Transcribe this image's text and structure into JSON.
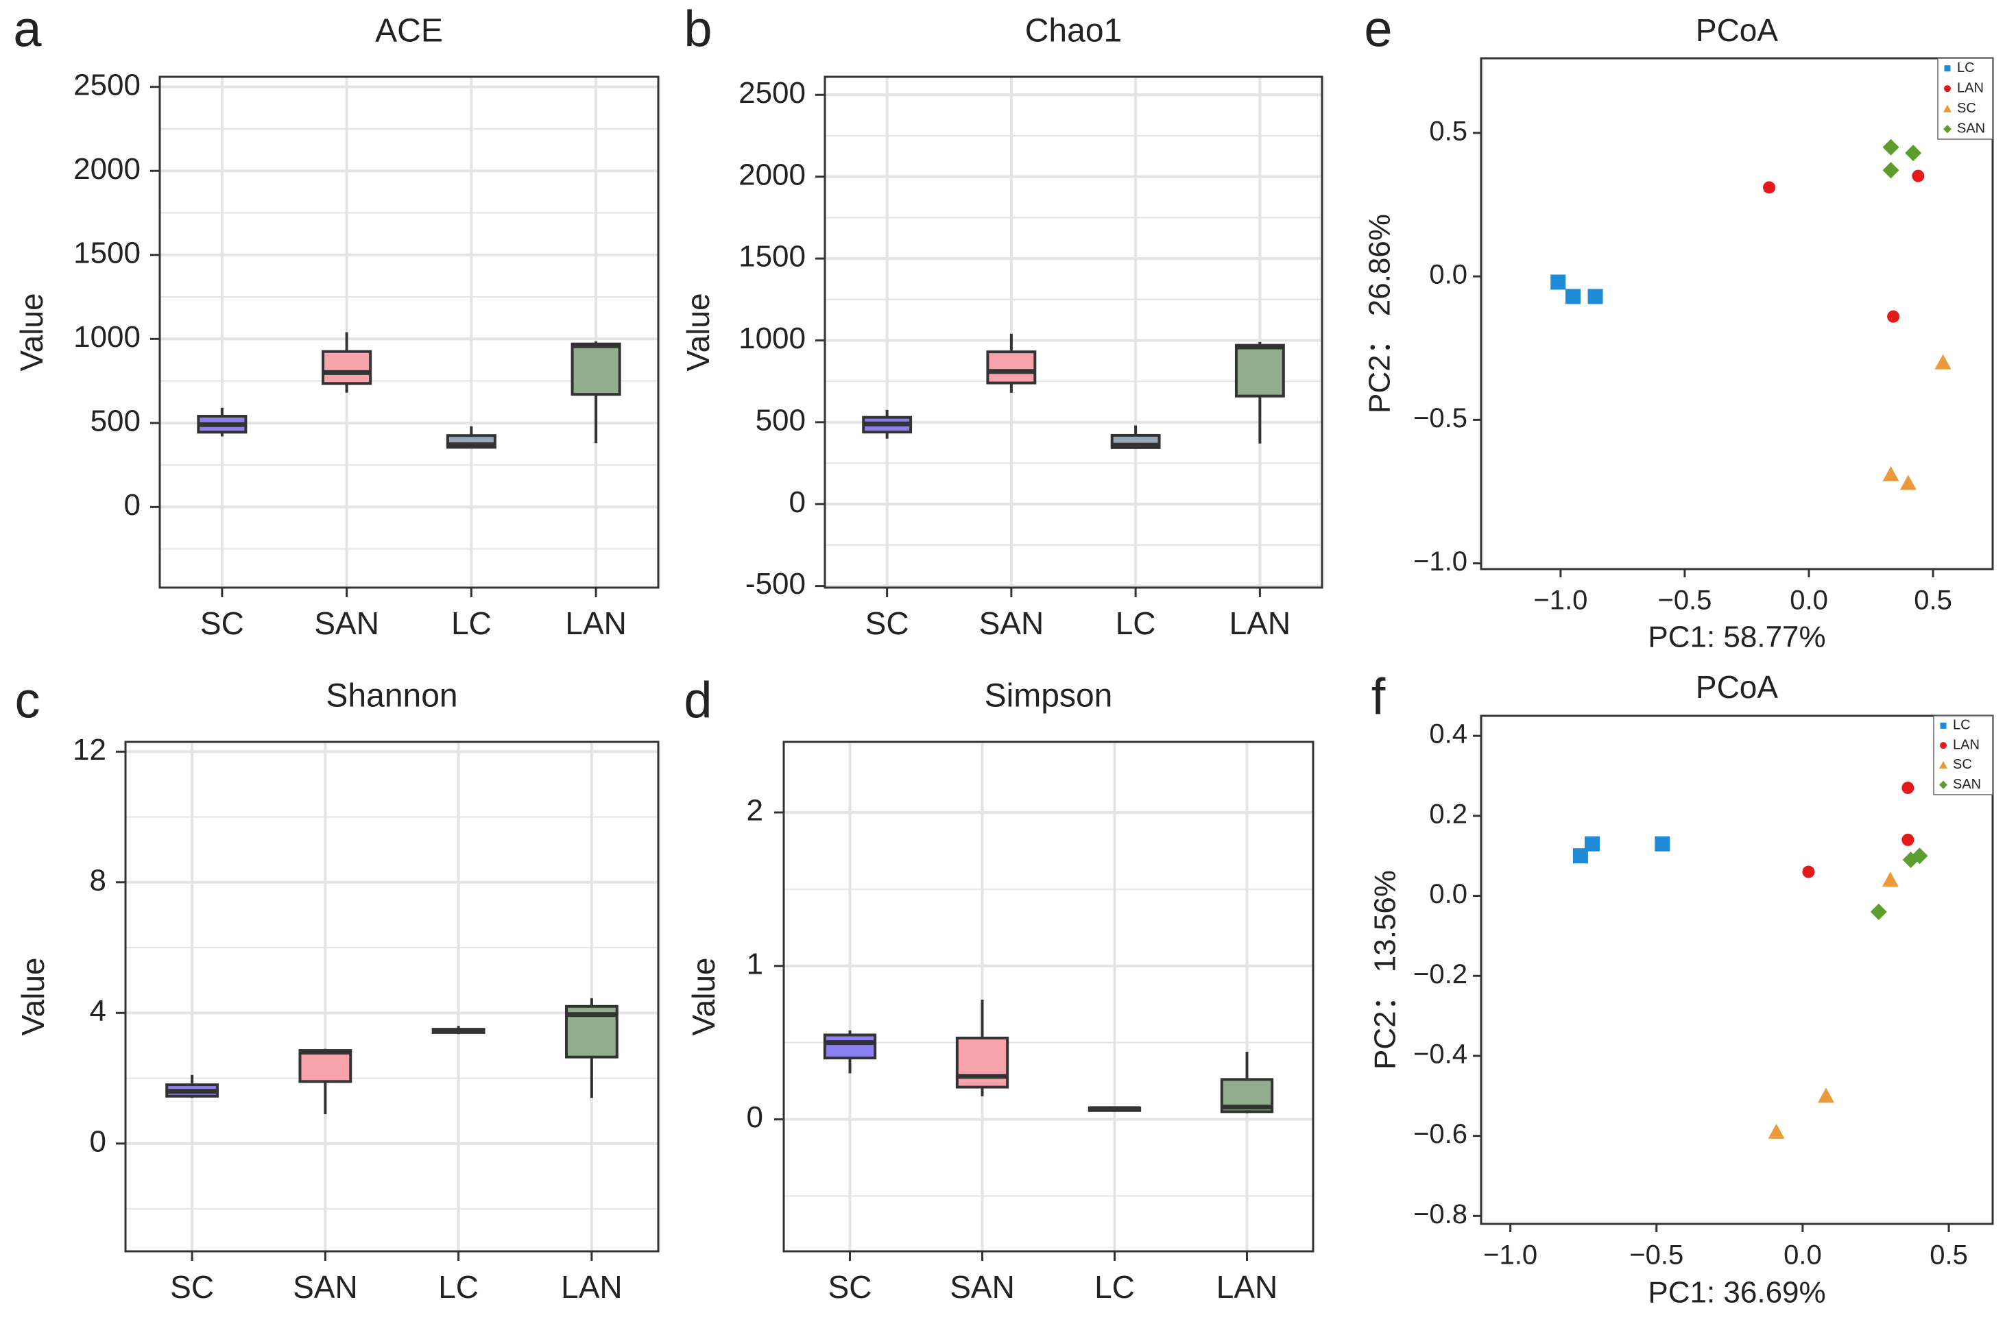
{
  "colors": {
    "SC": "#8c7ff0",
    "SAN": "#f6a3ab",
    "LC": "#97a8b2",
    "LAN": "#93ad8f",
    "pcoa_LC": "#1f8bd6",
    "pcoa_LAN": "#e5191a",
    "pcoa_SC": "#eb9a3a",
    "pcoa_SAN": "#5b9e2b"
  },
  "chart_data": [
    {
      "panel": "a",
      "type": "box",
      "title": "ACE",
      "xlabel": "",
      "ylabel": "Value",
      "ylim": [
        -480,
        2560
      ],
      "yticks": [
        0,
        500,
        1000,
        1500,
        2000,
        2500
      ],
      "grid": true,
      "categories": [
        "SC",
        "SAN",
        "LC",
        "LAN"
      ],
      "boxes": [
        {
          "group": "SC",
          "min": 420,
          "q1": 445,
          "median": 490,
          "q3": 540,
          "max": 590
        },
        {
          "group": "SAN",
          "min": 680,
          "q1": 735,
          "median": 800,
          "q3": 925,
          "max": 1040
        },
        {
          "group": "LC",
          "min": 350,
          "q1": 355,
          "median": 370,
          "q3": 425,
          "max": 480
        },
        {
          "group": "LAN",
          "min": 380,
          "q1": 670,
          "median": 960,
          "q3": 970,
          "max": 985
        }
      ]
    },
    {
      "panel": "b",
      "type": "box",
      "title": "Chao1",
      "xlabel": "",
      "ylabel": "Value",
      "ylim": [
        -510,
        2610
      ],
      "yticks": [
        -500,
        0,
        500,
        1000,
        1500,
        2000,
        2500
      ],
      "grid": true,
      "categories": [
        "SC",
        "SAN",
        "LC",
        "LAN"
      ],
      "boxes": [
        {
          "group": "SC",
          "min": 400,
          "q1": 440,
          "median": 490,
          "q3": 530,
          "max": 575
        },
        {
          "group": "SAN",
          "min": 680,
          "q1": 740,
          "median": 810,
          "q3": 930,
          "max": 1040
        },
        {
          "group": "LC",
          "min": 340,
          "q1": 345,
          "median": 360,
          "q3": 420,
          "max": 480
        },
        {
          "group": "LAN",
          "min": 370,
          "q1": 660,
          "median": 960,
          "q3": 970,
          "max": 990
        }
      ]
    },
    {
      "panel": "c",
      "type": "box",
      "title": "Shannon",
      "xlabel": "",
      "ylabel": "Value",
      "ylim": [
        -3.3,
        12.3
      ],
      "yticks": [
        0,
        4,
        8,
        12
      ],
      "grid": true,
      "categories": [
        "SC",
        "SAN",
        "LC",
        "LAN"
      ],
      "boxes": [
        {
          "group": "SC",
          "min": 1.4,
          "q1": 1.45,
          "median": 1.6,
          "q3": 1.8,
          "max": 2.1
        },
        {
          "group": "SAN",
          "min": 0.9,
          "q1": 1.9,
          "median": 2.8,
          "q3": 2.85,
          "max": 2.9
        },
        {
          "group": "LC",
          "min": 3.35,
          "q1": 3.4,
          "median": 3.45,
          "q3": 3.5,
          "max": 3.6
        },
        {
          "group": "LAN",
          "min": 1.4,
          "q1": 2.65,
          "median": 3.95,
          "q3": 4.2,
          "max": 4.45
        }
      ]
    },
    {
      "panel": "d",
      "type": "box",
      "title": "Simpson",
      "xlabel": "",
      "ylabel": "Value",
      "ylim": [
        -0.86,
        2.46
      ],
      "yticks": [
        0,
        1,
        2
      ],
      "grid": true,
      "categories": [
        "SC",
        "SAN",
        "LC",
        "LAN"
      ],
      "boxes": [
        {
          "group": "SC",
          "min": 0.3,
          "q1": 0.4,
          "median": 0.5,
          "q3": 0.55,
          "max": 0.58
        },
        {
          "group": "SAN",
          "min": 0.15,
          "q1": 0.21,
          "median": 0.28,
          "q3": 0.53,
          "max": 0.78
        },
        {
          "group": "LC",
          "min": 0.06,
          "q1": 0.065,
          "median": 0.07,
          "q3": 0.075,
          "max": 0.08
        },
        {
          "group": "LAN",
          "min": 0.04,
          "q1": 0.05,
          "median": 0.08,
          "q3": 0.26,
          "max": 0.44
        }
      ]
    },
    {
      "panel": "e",
      "type": "scatter",
      "title": "PCoA",
      "xlabel": "PC1: 58.77%",
      "ylabel": "PC2： 26.86%",
      "xlim": [
        -1.32,
        0.74
      ],
      "ylim": [
        -1.02,
        0.76
      ],
      "xticks": [
        -1.0,
        -0.5,
        0.0,
        0.5
      ],
      "yticks": [
        0.5,
        0.0,
        -0.5,
        -1.0
      ],
      "grid": false,
      "legend": "top-right",
      "series": [
        {
          "name": "LC",
          "marker": "square",
          "points": [
            [
              -1.01,
              -0.02
            ],
            [
              -0.95,
              -0.07
            ],
            [
              -0.86,
              -0.07
            ]
          ]
        },
        {
          "name": "LAN",
          "marker": "circle",
          "points": [
            [
              -0.16,
              0.31
            ],
            [
              0.44,
              0.35
            ],
            [
              0.34,
              -0.14
            ]
          ]
        },
        {
          "name": "SC",
          "marker": "triangle",
          "points": [
            [
              0.54,
              -0.3
            ],
            [
              0.33,
              -0.69
            ],
            [
              0.4,
              -0.72
            ]
          ]
        },
        {
          "name": "SAN",
          "marker": "diamond",
          "points": [
            [
              0.33,
              0.45
            ],
            [
              0.42,
              0.43
            ],
            [
              0.33,
              0.37
            ]
          ]
        }
      ]
    },
    {
      "panel": "f",
      "type": "scatter",
      "title": "PCoA",
      "xlabel": "PC1: 36.69%",
      "ylabel": "PC2： 13.56%",
      "xlim": [
        -1.1,
        0.65
      ],
      "ylim": [
        -0.82,
        0.45
      ],
      "xticks": [
        -1.0,
        -0.5,
        0.0,
        0.5
      ],
      "yticks": [
        0.4,
        0.2,
        0.0,
        -0.2,
        -0.4,
        -0.6,
        -0.8
      ],
      "grid": false,
      "legend": "top-right",
      "series": [
        {
          "name": "LC",
          "marker": "square",
          "points": [
            [
              -0.76,
              0.1
            ],
            [
              -0.72,
              0.13
            ],
            [
              -0.48,
              0.13
            ]
          ]
        },
        {
          "name": "LAN",
          "marker": "circle",
          "points": [
            [
              0.36,
              0.27
            ],
            [
              0.36,
              0.14
            ],
            [
              0.02,
              0.06
            ]
          ]
        },
        {
          "name": "SC",
          "marker": "triangle",
          "points": [
            [
              0.3,
              0.04
            ],
            [
              0.08,
              -0.5
            ],
            [
              -0.09,
              -0.59
            ]
          ]
        },
        {
          "name": "SAN",
          "marker": "diamond",
          "points": [
            [
              0.37,
              0.09
            ],
            [
              0.4,
              0.1
            ],
            [
              0.26,
              -0.04
            ]
          ]
        }
      ]
    }
  ]
}
